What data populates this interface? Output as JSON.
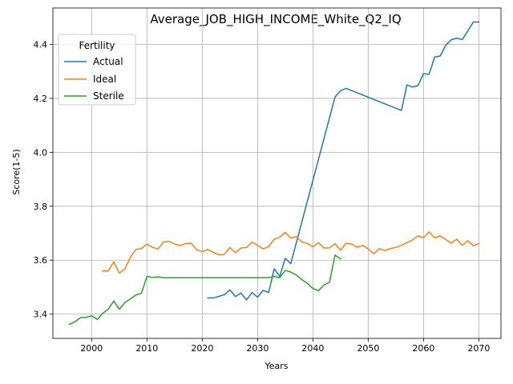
{
  "chart_data": {
    "type": "line",
    "title": "Average_JOB_HIGH_INCOME_White_Q2_IQ",
    "xlabel": "Years",
    "ylabel": "Score(1-5)",
    "xlim": [
      1993,
      2074
    ],
    "ylim": [
      3.31,
      4.535
    ],
    "xticks": [
      2000,
      2010,
      2020,
      2030,
      2040,
      2050,
      2060,
      2070
    ],
    "yticks": [
      3.4,
      3.6,
      3.8,
      4.0,
      4.2,
      4.4
    ],
    "ytick_labels": [
      "3.4",
      "3.6",
      "3.8",
      "4.0",
      "4.2",
      "4.4"
    ],
    "grid": true,
    "legend": {
      "title": "Fertility",
      "position": "top-left"
    },
    "series": [
      {
        "name": "Actual",
        "color": "#1f77b4",
        "x": [
          2021,
          2022,
          2023,
          2024,
          2025,
          2026,
          2027,
          2028,
          2029,
          2030,
          2031,
          2032,
          2033,
          2034,
          2035,
          2036,
          2044,
          2045,
          2046,
          2056,
          2057,
          2058,
          2059,
          2060,
          2061,
          2062,
          2063,
          2064,
          2065,
          2066,
          2067,
          2068,
          2069,
          2070
        ],
        "values": [
          3.46,
          3.46,
          3.466,
          3.472,
          3.49,
          3.465,
          3.478,
          3.453,
          3.48,
          3.463,
          3.488,
          3.48,
          3.568,
          3.54,
          3.607,
          3.587,
          4.205,
          4.228,
          4.237,
          4.155,
          4.25,
          4.242,
          4.247,
          4.292,
          4.289,
          4.353,
          4.357,
          4.397,
          4.417,
          4.423,
          4.418,
          4.45,
          4.483,
          4.483
        ]
      },
      {
        "name": "Ideal",
        "color": "#ff7f0e",
        "x": [
          2002,
          2003,
          2004,
          2005,
          2006,
          2007,
          2008,
          2009,
          2010,
          2011,
          2012,
          2013,
          2014,
          2015,
          2016,
          2017,
          2018,
          2019,
          2020,
          2021,
          2022,
          2023,
          2024,
          2025,
          2026,
          2027,
          2028,
          2029,
          2030,
          2031,
          2032,
          2033,
          2034,
          2035,
          2036,
          2037,
          2038,
          2039,
          2040,
          2041,
          2042,
          2043,
          2044,
          2045,
          2046,
          2047,
          2048,
          2049,
          2050,
          2051,
          2052,
          2053,
          2054,
          2055,
          2056,
          2057,
          2058,
          2059,
          2060,
          2061,
          2062,
          2063,
          2064,
          2065,
          2066,
          2067,
          2068,
          2069,
          2070
        ],
        "values": [
          3.56,
          3.56,
          3.594,
          3.552,
          3.567,
          3.61,
          3.64,
          3.643,
          3.66,
          3.648,
          3.641,
          3.668,
          3.67,
          3.66,
          3.654,
          3.662,
          3.663,
          3.638,
          3.632,
          3.64,
          3.629,
          3.62,
          3.622,
          3.647,
          3.628,
          3.645,
          3.647,
          3.667,
          3.655,
          3.642,
          3.65,
          3.678,
          3.685,
          3.703,
          3.682,
          3.687,
          3.668,
          3.662,
          3.65,
          3.665,
          3.645,
          3.646,
          3.661,
          3.637,
          3.663,
          3.66,
          3.648,
          3.655,
          3.642,
          3.624,
          3.643,
          3.636,
          3.643,
          3.648,
          3.655,
          3.665,
          3.675,
          3.69,
          3.683,
          3.705,
          3.683,
          3.69,
          3.677,
          3.663,
          3.678,
          3.655,
          3.672,
          3.653,
          3.662
        ]
      },
      {
        "name": "Sterile",
        "color": "#2ca02c",
        "x": [
          1996,
          1997,
          1998,
          1999,
          2000,
          2001,
          2002,
          2003,
          2004,
          2005,
          2006,
          2007,
          2008,
          2009,
          2010,
          2011,
          2012,
          2013,
          2014,
          2015,
          2016,
          2017,
          2018,
          2019,
          2020,
          2021,
          2022,
          2023,
          2024,
          2025,
          2026,
          2027,
          2028,
          2029,
          2030,
          2031,
          2032,
          2033,
          2034,
          2035,
          2036,
          2037,
          2038,
          2039,
          2040,
          2041,
          2042,
          2043,
          2044,
          2045
        ],
        "values": [
          3.362,
          3.372,
          3.387,
          3.388,
          3.394,
          3.38,
          3.403,
          3.418,
          3.449,
          3.418,
          3.443,
          3.456,
          3.471,
          3.477,
          3.54,
          3.536,
          3.538,
          3.535,
          3.535,
          3.535,
          3.535,
          3.535,
          3.535,
          3.535,
          3.535,
          3.535,
          3.535,
          3.535,
          3.535,
          3.535,
          3.535,
          3.535,
          3.535,
          3.535,
          3.535,
          3.535,
          3.535,
          3.54,
          3.535,
          3.562,
          3.556,
          3.545,
          3.528,
          3.514,
          3.495,
          3.487,
          3.508,
          3.518,
          3.619,
          3.605
        ]
      }
    ]
  }
}
